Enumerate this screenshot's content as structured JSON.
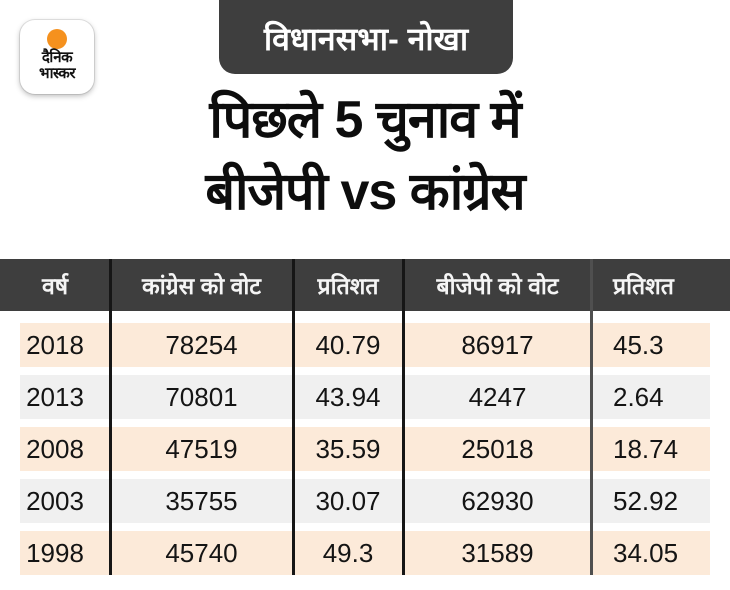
{
  "logo": {
    "line1": "दैनिक",
    "line2": "भास्कर"
  },
  "header": {
    "badge": "विधानसभा- नोखा",
    "title_line1": "पिछले 5 चुनाव में",
    "title_line2": "बीजेपी vs कांग्रेस"
  },
  "chart_data": {
    "type": "table",
    "title": "पिछले 5 चुनाव में बीजेपी vs कांग्रेस",
    "subtitle": "विधानसभा- नोखा",
    "columns": [
      "वर्ष",
      "कांग्रेस को वोट",
      "प्रतिशत",
      "बीजेपी को वोट",
      "प्रतिशत"
    ],
    "rows": [
      [
        2018,
        78254,
        40.79,
        86917,
        45.3
      ],
      [
        2013,
        70801,
        43.94,
        4247,
        2.64
      ],
      [
        2008,
        47519,
        35.59,
        25018,
        18.74
      ],
      [
        2003,
        35755,
        30.07,
        62930,
        52.92
      ],
      [
        1998,
        45740,
        49.3,
        31589,
        34.05
      ]
    ]
  },
  "colors": {
    "header_dark": "#3e3e3e",
    "row_peach": "#fcead9",
    "row_gray": "#f0f0f0",
    "divider_black": "#161616",
    "divider_gray": "#4f4f4f",
    "logo_orange": "#f5911e",
    "text_dark": "#141414",
    "header_text": "#f5f5f5"
  }
}
